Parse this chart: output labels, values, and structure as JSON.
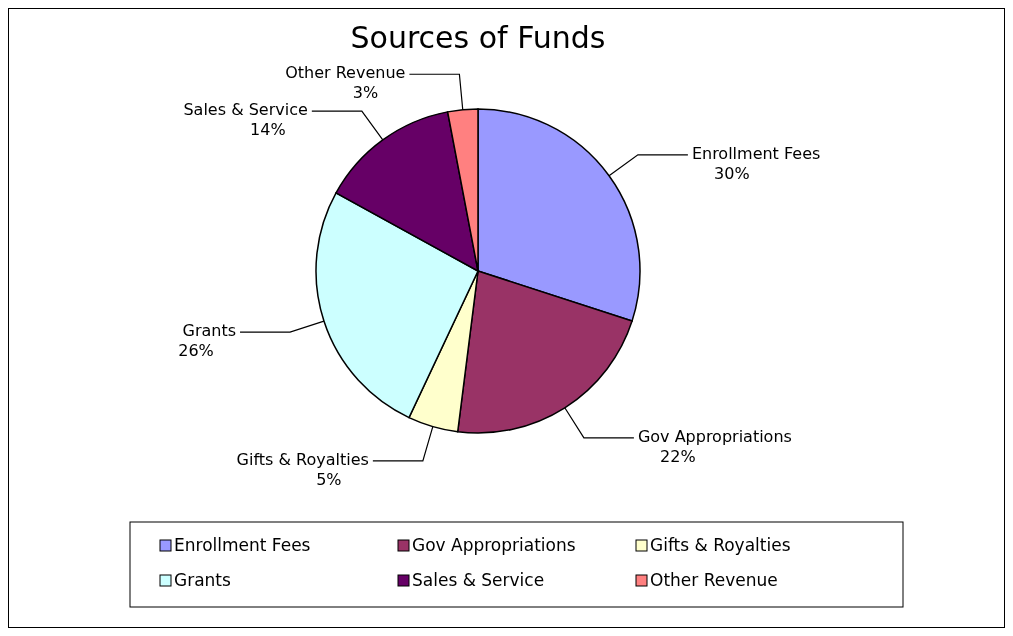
{
  "chart_data": {
    "type": "pie",
    "title": "Sources of Funds",
    "categories": [
      "Enrollment Fees",
      "Gov Appropriations",
      "Gifts & Royalties",
      "Grants",
      "Sales & Service",
      "Other Revenue"
    ],
    "values": [
      30,
      22,
      5,
      26,
      14,
      3
    ],
    "value_labels": [
      "30%",
      "22%",
      "5%",
      "26%",
      "14%",
      "3%"
    ],
    "colors": [
      "#9999ff",
      "#993366",
      "#ffffcc",
      "#ccffff",
      "#660066",
      "#ff8080"
    ],
    "legend": "bottom"
  }
}
